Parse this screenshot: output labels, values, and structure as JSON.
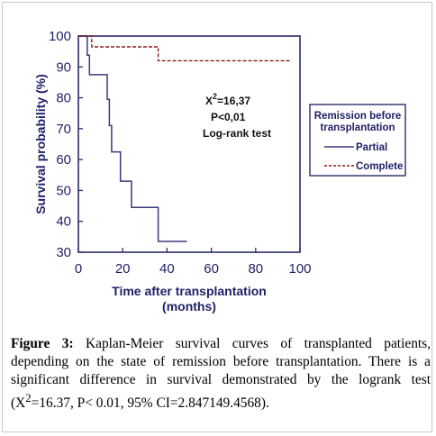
{
  "chart_data": {
    "type": "line",
    "step": true,
    "xlabel": "Time after transplantation (months)",
    "xlabel_lines": [
      "Time after transplantation",
      "(months)"
    ],
    "ylabel": "Survival probability (%)",
    "xlim": [
      0,
      100
    ],
    "ylim": [
      30,
      100
    ],
    "x_ticks": [
      "0",
      "20",
      "40",
      "60",
      "80",
      "100"
    ],
    "y_ticks": [
      "30",
      "40",
      "50",
      "60",
      "70",
      "80",
      "90",
      "100"
    ],
    "grid": false,
    "annotation": {
      "stat_base": "X",
      "stat_superscript": "2",
      "stat_value": "=16,37",
      "p_value": "P<0,01",
      "test": "Log-rank test"
    },
    "legend": {
      "title_lines": [
        "Remission before",
        "transplantation"
      ],
      "placement": "right"
    },
    "series": [
      {
        "name": "Partial",
        "color": "#3a3a80",
        "dash": "solid",
        "points": [
          [
            0,
            100
          ],
          [
            4,
            100
          ],
          [
            4,
            93.8
          ],
          [
            5,
            93.8
          ],
          [
            5,
            87.5
          ],
          [
            13,
            87.5
          ],
          [
            13,
            79.5
          ],
          [
            14,
            79.5
          ],
          [
            14,
            71
          ],
          [
            15,
            71
          ],
          [
            15,
            62.5
          ],
          [
            19,
            62.5
          ],
          [
            19,
            53
          ],
          [
            24,
            53
          ],
          [
            24,
            44.5
          ],
          [
            36,
            44.5
          ],
          [
            36,
            33.5
          ],
          [
            49,
            33.5
          ]
        ]
      },
      {
        "name": "Complete",
        "color": "#8b1a1a",
        "dash": "dashed",
        "points": [
          [
            0,
            100
          ],
          [
            6,
            100
          ],
          [
            6,
            96.5
          ],
          [
            36,
            96.5
          ],
          [
            36,
            92
          ],
          [
            96,
            92
          ]
        ]
      }
    ]
  },
  "caption": {
    "label": "Figure 3:",
    "text": " Kaplan-Meier survival curves of transplanted patients, depending on the state of remission before transplantation. There is a significant difference in survival demonstrated by the logrank test (X",
    "superscript": "2",
    "tail": "=16.37, P< 0.01, 95% CI=2.847149.4568)."
  }
}
